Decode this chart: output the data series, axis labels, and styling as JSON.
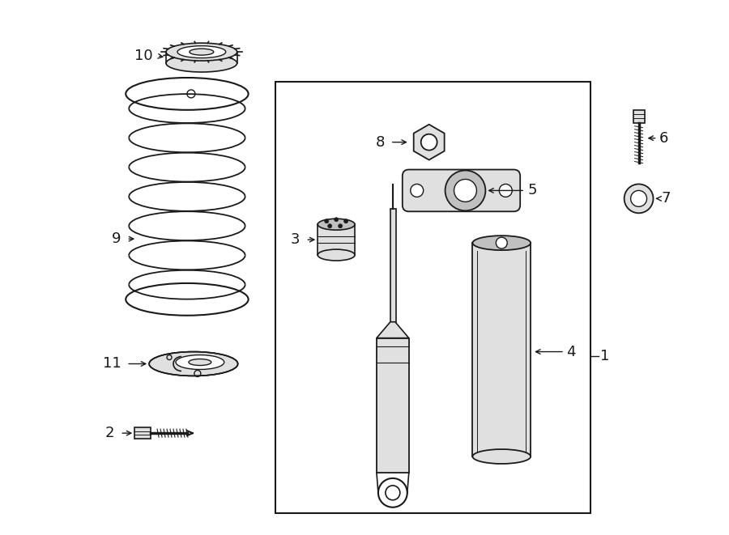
{
  "bg_color": "#ffffff",
  "line_color": "#1a1a1a",
  "light_gray": "#e0e0e0",
  "mid_gray": "#c0c0c0",
  "figsize": [
    9.0,
    6.61
  ],
  "dpi": 100
}
